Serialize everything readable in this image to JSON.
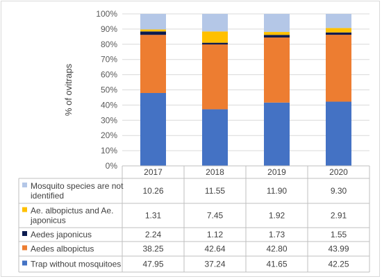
{
  "chart_data": {
    "type": "bar",
    "stacked": true,
    "percent": true,
    "ylabel": "% of ovitraps",
    "ylim": [
      0,
      100
    ],
    "yticks": [
      "0%",
      "10%",
      "20%",
      "30%",
      "40%",
      "50%",
      "60%",
      "70%",
      "80%",
      "90%",
      "100%"
    ],
    "categories": [
      "2017",
      "2018",
      "2019",
      "2020"
    ],
    "grid": "horizontal",
    "legend": "data-table",
    "series": [
      {
        "name": "Trap without mosquitoes",
        "color": "#4472c4",
        "values": [
          47.95,
          37.24,
          41.65,
          42.25
        ],
        "labels": [
          "47.95",
          "37.24",
          "41.65",
          "42.25"
        ]
      },
      {
        "name": "Aedes albopictus",
        "color": "#ed7d31",
        "values": [
          38.25,
          42.64,
          42.8,
          43.99
        ],
        "labels": [
          "38.25",
          "42.64",
          "42.80",
          "43.99"
        ]
      },
      {
        "name": "Aedes japonicus",
        "color": "#0b1b4f",
        "values": [
          2.24,
          1.12,
          1.73,
          1.55
        ],
        "labels": [
          "2.24",
          "1.12",
          "1.73",
          "1.55"
        ]
      },
      {
        "name_lines": [
          "Ae. albopictus and Ae.",
          "japonicus"
        ],
        "color": "#ffc000",
        "values": [
          1.31,
          7.45,
          1.92,
          2.91
        ],
        "labels": [
          "1.31",
          "7.45",
          "1.92",
          "2.91"
        ]
      },
      {
        "name_lines": [
          "Mosquito species are not",
          "identified"
        ],
        "color": "#b4c7e7",
        "values": [
          10.26,
          11.55,
          11.9,
          9.3
        ],
        "labels": [
          "10.26",
          "11.55",
          "11.90",
          "9.30"
        ]
      }
    ]
  }
}
